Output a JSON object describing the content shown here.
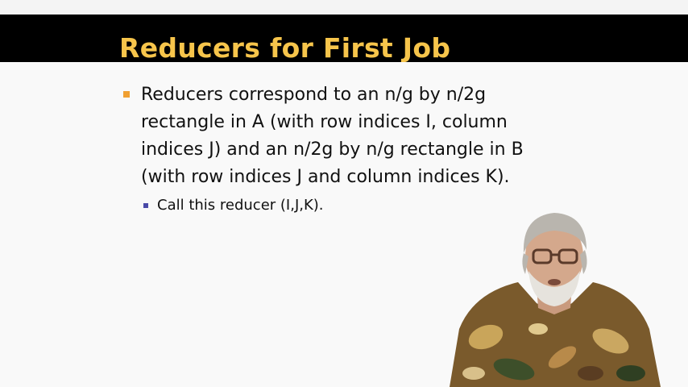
{
  "slide": {
    "title": "Reducers for First Job",
    "bullets": [
      {
        "lines": [
          "Reducers correspond to an n/g by n/2g",
          "rectangle in A (with row indices I, column",
          "indices J) and an n/2g by n/g rectangle in B",
          "(with row indices J and column indices K)."
        ],
        "sub_bullets": [
          "Call this reducer (I,J,K)."
        ]
      }
    ]
  },
  "colors": {
    "title_bar": "#000000",
    "title_text": "#f7c54b",
    "bullet_level1": "#f0a032",
    "bullet_level2": "#4a4aa8",
    "background": "#f9f9f9"
  }
}
